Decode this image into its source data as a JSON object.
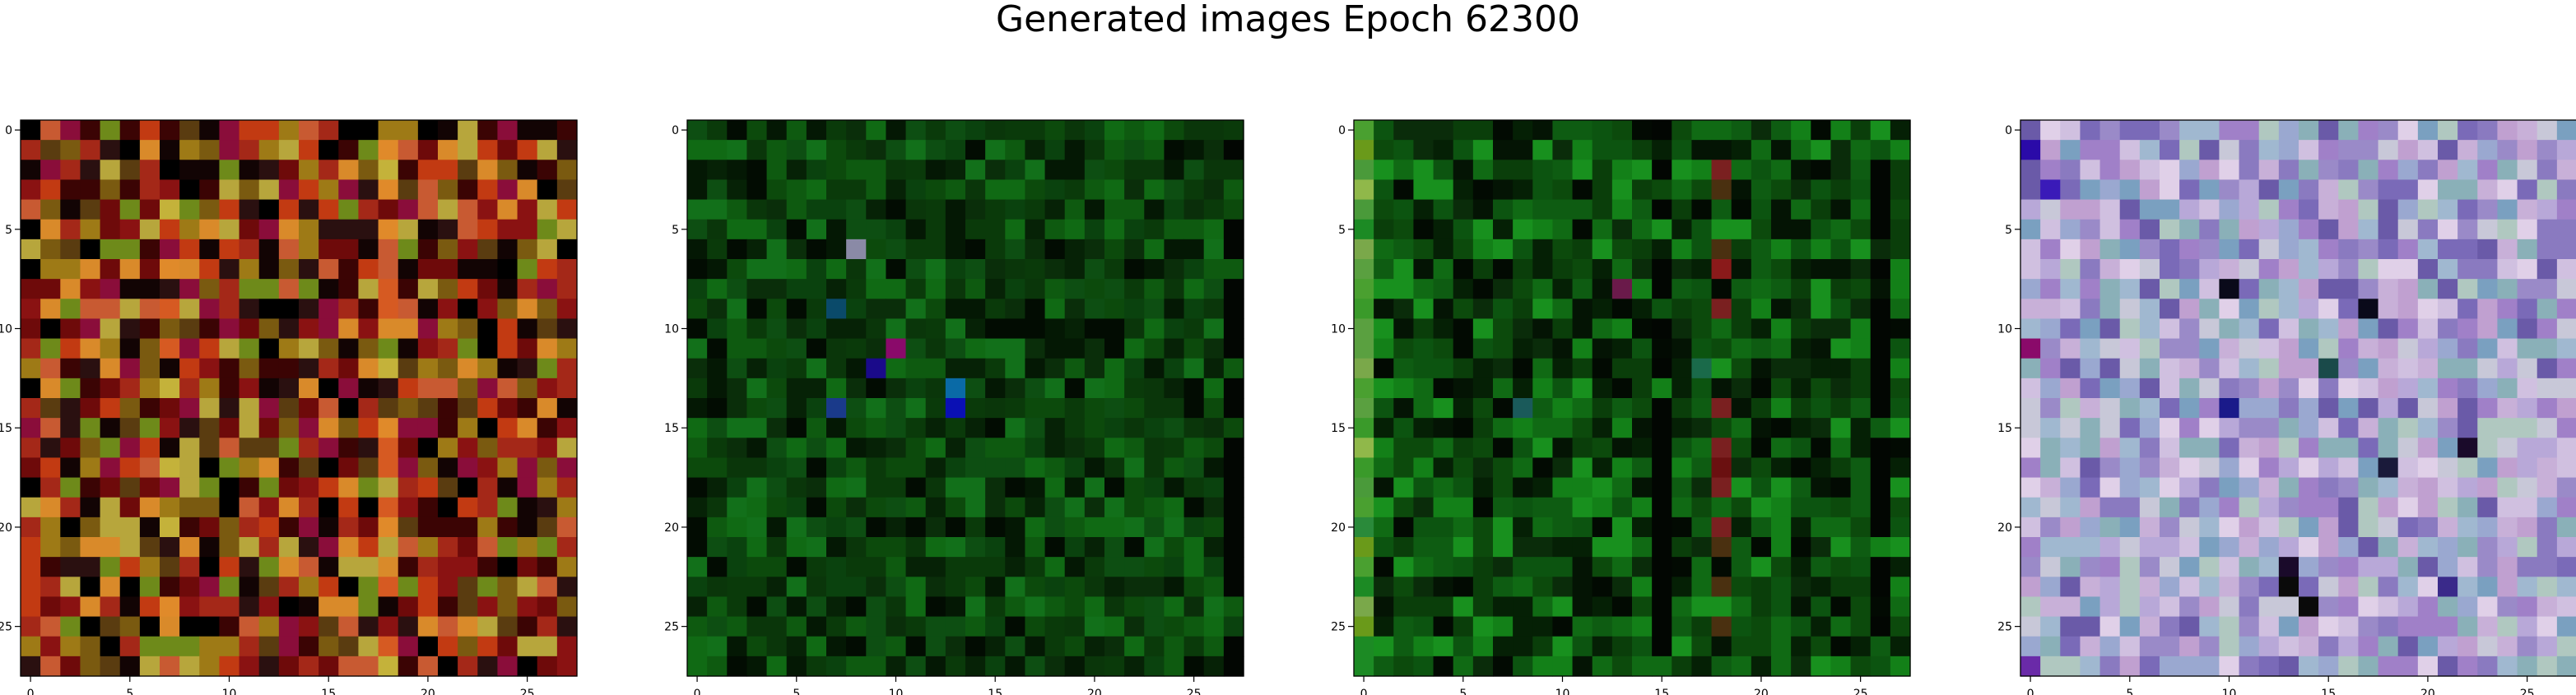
{
  "title": "Generated images Epoch 62300",
  "chart_data": [
    {
      "type": "heatmap",
      "panel": 1,
      "title": "",
      "xlabel": "",
      "ylabel": "",
      "rows": 28,
      "cols": 28,
      "xticks": [
        0,
        5,
        10,
        15,
        20,
        25
      ],
      "yticks": [
        0,
        5,
        10,
        15,
        20,
        25
      ],
      "palette": [
        "#3b0404",
        "#6e0a0a",
        "#8a1212",
        "#a42818",
        "#c23a12",
        "#7a5a10",
        "#9e7a16",
        "#b7a63c",
        "#5a3c10",
        "#120404",
        "#000000",
        "#8a0d3a",
        "#c85a32",
        "#6e8a1a",
        "#d98a2a",
        "#2a1010"
      ],
      "band_colors": [
        "#d65a22",
        "#c4b23a",
        "#e08a2a"
      ],
      "band_cols": [
        7,
        18
      ],
      "dark_cols": [],
      "stripe_col": -1,
      "stripe_colors": []
    },
    {
      "type": "heatmap",
      "panel": 2,
      "title": "",
      "xlabel": "",
      "ylabel": "",
      "rows": 28,
      "cols": 28,
      "xticks": [
        0,
        5,
        10,
        15,
        20,
        25
      ],
      "yticks": [
        0,
        5,
        10,
        15,
        20,
        25
      ],
      "palette": [
        "#0a3a0a",
        "#0c4a0c",
        "#0e5a10",
        "#0a2e0a",
        "#062206",
        "#106a14",
        "#0a420e",
        "#041804",
        "#0d4e12",
        "#0a360a",
        "#020c02",
        "#12701a"
      ],
      "accent_cells": [
        [
          6,
          8,
          "#8a8aa6"
        ],
        [
          11,
          10,
          "#8a0a6a"
        ],
        [
          12,
          9,
          "#1a0a8a"
        ],
        [
          13,
          13,
          "#0a6aa6"
        ],
        [
          14,
          13,
          "#0a10b4"
        ],
        [
          14,
          7,
          "#1a3a8a"
        ],
        [
          9,
          7,
          "#0a4a6a"
        ]
      ],
      "dark_cols": [
        27
      ],
      "stripe_col": -1,
      "stripe_colors": []
    },
    {
      "type": "heatmap",
      "panel": 3,
      "title": "",
      "xlabel": "",
      "ylabel": "",
      "rows": 28,
      "cols": 28,
      "xticks": [
        0,
        5,
        10,
        15,
        20,
        25
      ],
      "yticks": [
        0,
        5,
        10,
        15,
        20,
        25
      ],
      "palette": [
        "#0a3e0a",
        "#0c5410",
        "#106a14",
        "#0a2c0a",
        "#052005",
        "#138018",
        "#0c4a0c",
        "#041404",
        "#0e5c12",
        "#020a02",
        "#18901e"
      ],
      "accent_cells": [
        [
          7,
          18,
          "#8a1a1a"
        ],
        [
          8,
          13,
          "#6a1a4a"
        ],
        [
          12,
          17,
          "#1a6a4a"
        ],
        [
          14,
          8,
          "#1a5a5a"
        ],
        [
          17,
          18,
          "#6a1010"
        ]
      ],
      "stripe_col": 0,
      "stripe_colors": [
        "#1c8a24",
        "#3a9a2a",
        "#6a9a1a",
        "#4aa030",
        "#2a8a3a",
        "#5aa040",
        "#7aa84a",
        "#4a9a3a",
        "#90b84a"
      ],
      "dark_cols": [
        15,
        26
      ],
      "band_cols": [
        18
      ],
      "band_colors": [
        "#7a2020",
        "#4a3010"
      ]
    },
    {
      "type": "heatmap",
      "panel": 4,
      "title": "",
      "xlabel": "",
      "ylabel": "",
      "rows": 28,
      "cols": 28,
      "xticks": [
        0,
        5,
        10,
        15,
        20,
        25
      ],
      "yticks": [
        0,
        5,
        10,
        15,
        20,
        25
      ],
      "palette": [
        "#b8a8d8",
        "#9a8ac8",
        "#c8b0d8",
        "#8a7ac0",
        "#d0c0e0",
        "#a0b8d0",
        "#7a6ab8",
        "#c0a0d0",
        "#b0c8c0",
        "#9aa8d0",
        "#e0d0e8",
        "#8ab0b8",
        "#a080c8",
        "#6a5aa8",
        "#c8c8d8",
        "#7aa0c0"
      ],
      "accent_cells": [
        [
          1,
          0,
          "#2a0aa8"
        ],
        [
          3,
          1,
          "#3a1ab8"
        ],
        [
          8,
          10,
          "#0a0a1a"
        ],
        [
          9,
          17,
          "#0a0a1a"
        ],
        [
          11,
          0,
          "#8a0a6a"
        ],
        [
          14,
          10,
          "#1a1a8a"
        ],
        [
          12,
          15,
          "#1a4a4a"
        ],
        [
          16,
          22,
          "#1a0a2a"
        ],
        [
          22,
          13,
          "#1a0a2a"
        ],
        [
          23,
          13,
          "#0a0a0a"
        ],
        [
          24,
          14,
          "#0a0a0a"
        ],
        [
          17,
          18,
          "#1a1a3a"
        ],
        [
          23,
          21,
          "#3a2a8a"
        ],
        [
          27,
          0,
          "#6a2aa8"
        ]
      ],
      "dark_cols": [],
      "stripe_col": -1,
      "stripe_colors": [],
      "band_cols": [],
      "band_colors": []
    }
  ]
}
